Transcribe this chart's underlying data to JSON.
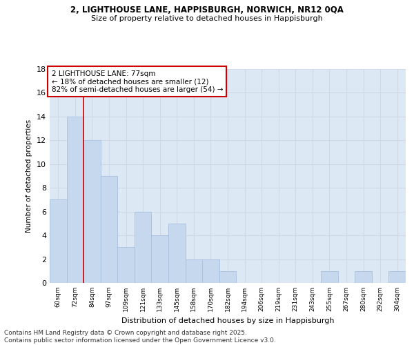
{
  "title_line1": "2, LIGHTHOUSE LANE, HAPPISBURGH, NORWICH, NR12 0QA",
  "title_line2": "Size of property relative to detached houses in Happisburgh",
  "xlabel": "Distribution of detached houses by size in Happisburgh",
  "ylabel": "Number of detached properties",
  "categories": [
    "60sqm",
    "72sqm",
    "84sqm",
    "97sqm",
    "109sqm",
    "121sqm",
    "133sqm",
    "145sqm",
    "158sqm",
    "170sqm",
    "182sqm",
    "194sqm",
    "206sqm",
    "219sqm",
    "231sqm",
    "243sqm",
    "255sqm",
    "267sqm",
    "280sqm",
    "292sqm",
    "304sqm"
  ],
  "values": [
    7,
    14,
    12,
    9,
    3,
    6,
    4,
    5,
    2,
    2,
    1,
    0,
    0,
    0,
    0,
    0,
    1,
    0,
    1,
    0,
    1
  ],
  "bar_color": "#c5d8ee",
  "bar_edge_color": "#a8c0e0",
  "grid_color": "#d0d8e8",
  "vline_x": 1.5,
  "vline_color": "#cc0000",
  "annotation_box_text": "2 LIGHTHOUSE LANE: 77sqm\n← 18% of detached houses are smaller (12)\n82% of semi-detached houses are larger (54) →",
  "annotation_box_color": "#cc0000",
  "annotation_text_fontsize": 7.5,
  "ylim": [
    0,
    18
  ],
  "yticks": [
    0,
    2,
    4,
    6,
    8,
    10,
    12,
    14,
    16,
    18
  ],
  "bg_color": "#dde8f5",
  "footer_text": "Contains HM Land Registry data © Crown copyright and database right 2025.\nContains public sector information licensed under the Open Government Licence v3.0.",
  "footer_fontsize": 6.5
}
